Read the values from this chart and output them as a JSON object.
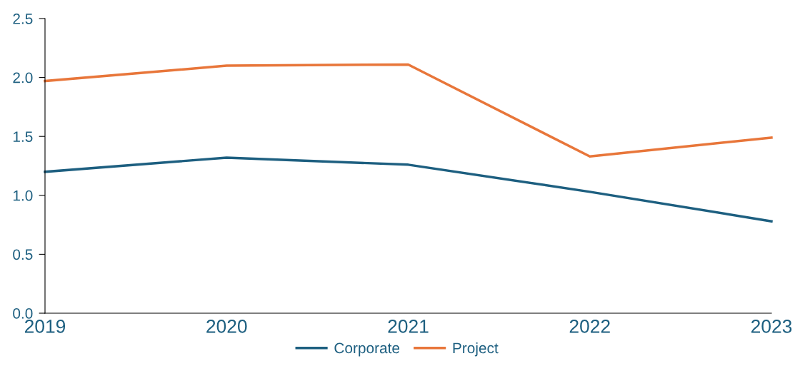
{
  "chart_data": {
    "type": "line",
    "categories": [
      "2019",
      "2020",
      "2021",
      "2022",
      "2023"
    ],
    "series": [
      {
        "name": "Corporate",
        "color": "#1d5f80",
        "values": [
          1.2,
          1.32,
          1.26,
          1.03,
          0.78
        ]
      },
      {
        "name": "Project",
        "color": "#e8763a",
        "values": [
          1.97,
          2.1,
          2.11,
          1.33,
          1.49
        ]
      }
    ],
    "ylim": [
      0,
      2.5
    ],
    "yticks": [
      {
        "value": 0,
        "label": "0.0"
      },
      {
        "value": 0.5,
        "label": "0.5"
      },
      {
        "value": 1,
        "label": "1.0"
      },
      {
        "value": 1.5,
        "label": "1.5"
      },
      {
        "value": 2,
        "label": "2.0"
      },
      {
        "value": 2.5,
        "label": "2.5"
      }
    ],
    "grid": false,
    "legend": "bottom",
    "marker": "none",
    "line_style": "solid"
  }
}
